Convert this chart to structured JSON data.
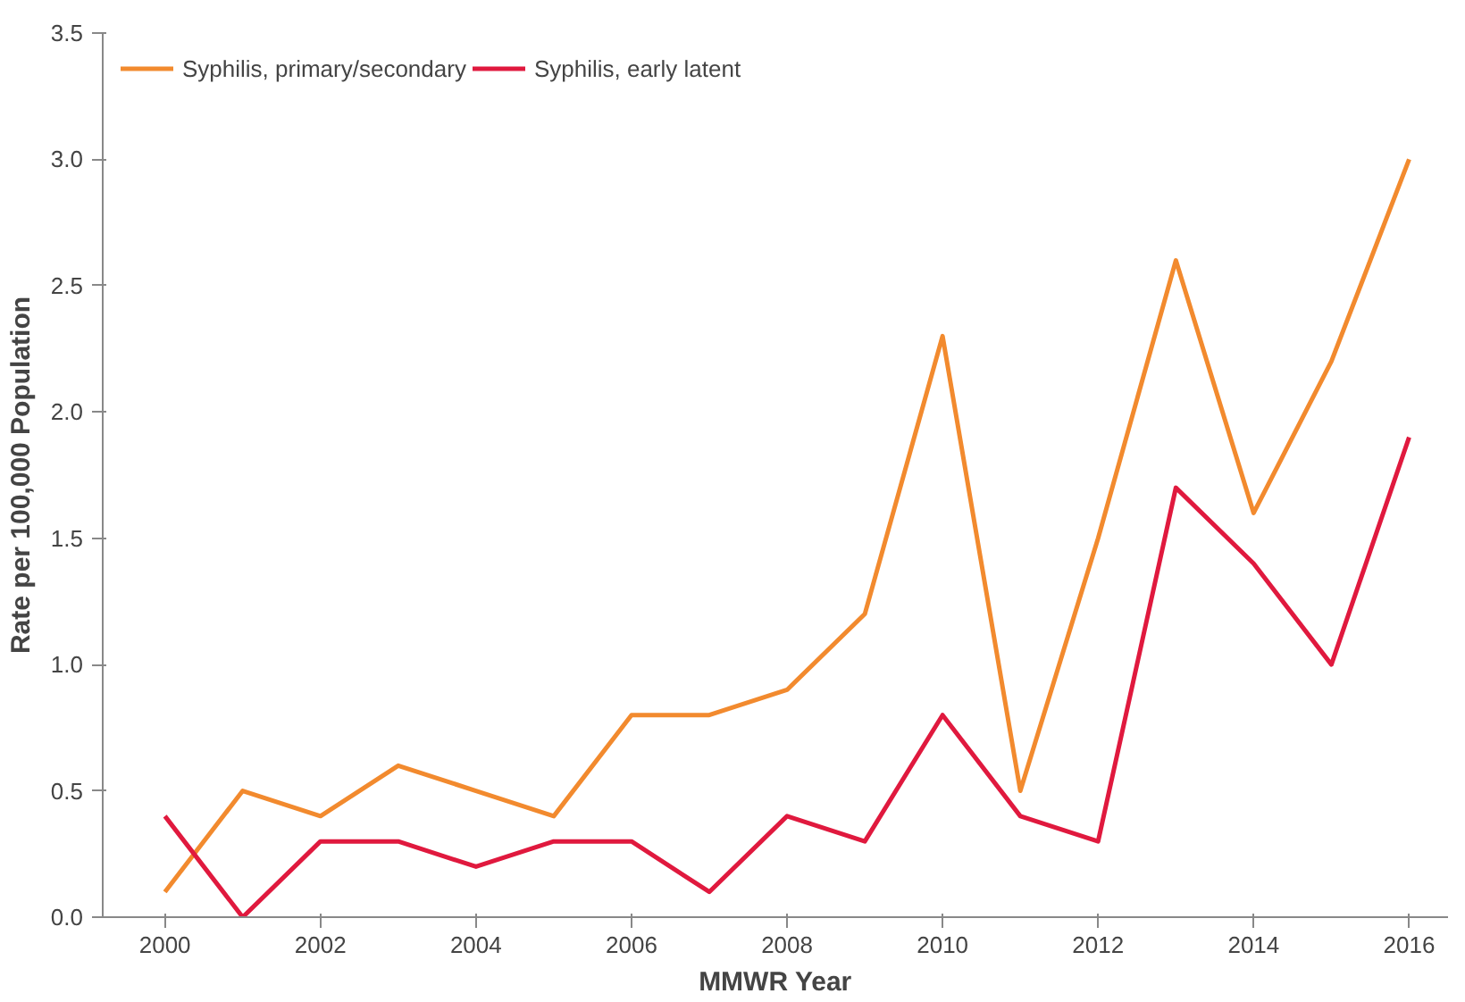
{
  "chart_data": {
    "type": "line",
    "xlabel": "MMWR Year",
    "ylabel": "Rate per 100,000 Population",
    "x": [
      2000,
      2001,
      2002,
      2003,
      2004,
      2005,
      2006,
      2007,
      2008,
      2009,
      2010,
      2011,
      2012,
      2013,
      2014,
      2015,
      2016
    ],
    "series": [
      {
        "name": "Syphilis, primary/secondary",
        "color": "#f28a2e",
        "values": [
          0.1,
          0.5,
          0.4,
          0.6,
          0.5,
          0.4,
          0.8,
          0.8,
          0.9,
          1.2,
          2.3,
          0.5,
          1.5,
          2.6,
          1.6,
          2.2,
          3.0
        ]
      },
      {
        "name": "Syphilis, early latent",
        "color": "#e0193e",
        "values": [
          0.4,
          0.0,
          0.3,
          0.3,
          0.2,
          0.3,
          0.3,
          0.1,
          0.4,
          0.3,
          0.8,
          0.4,
          0.3,
          1.7,
          1.4,
          1.0,
          1.9
        ]
      }
    ],
    "xlim": [
      1999.2,
      2016.5
    ],
    "xticks": [
      2000,
      2002,
      2004,
      2006,
      2008,
      2010,
      2012,
      2014,
      2016
    ],
    "ylim": [
      0,
      3.5
    ],
    "yticks": [
      {
        "value": 0,
        "label": "0.0"
      },
      {
        "value": 0.5,
        "label": "0.5"
      },
      {
        "value": 1,
        "label": "1.0"
      },
      {
        "value": 1.5,
        "label": "1.5"
      },
      {
        "value": 2,
        "label": "2.0"
      },
      {
        "value": 2.5,
        "label": "2.5"
      },
      {
        "value": 3,
        "label": "3.0"
      },
      {
        "value": 3.5,
        "label": "3.5"
      }
    ],
    "grid": false,
    "legend": "top left",
    "marker": "none",
    "line_style": "solid"
  }
}
